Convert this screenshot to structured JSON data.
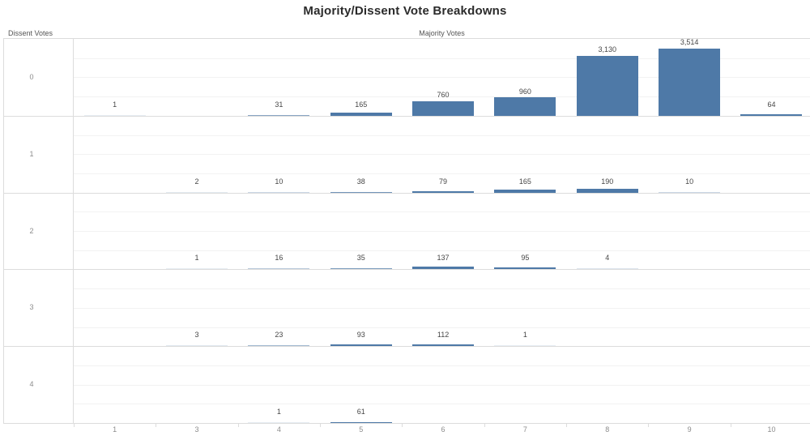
{
  "title": "Majority/Dissent Vote Breakdowns",
  "chart_data": {
    "type": "bar",
    "layout": "trellis-rows",
    "title": "Majority/Dissent Vote Breakdowns",
    "col_axis_label": "Majority Votes",
    "row_axis_label": "Dissent Votes",
    "categories": [
      "1",
      "3",
      "4",
      "5",
      "6",
      "7",
      "8",
      "9",
      "10"
    ],
    "row_categories": [
      "0",
      "1",
      "2",
      "3",
      "4"
    ],
    "ylim_per_pane": [
      0,
      4000
    ],
    "grid": true,
    "gridline_step": 1000,
    "legend": "none",
    "bar_color": "#4e79a7",
    "series": [
      {
        "name": "0",
        "values": [
          1,
          null,
          31,
          165,
          760,
          960,
          3130,
          3514,
          64
        ],
        "labels": [
          "1",
          null,
          "31",
          "165",
          "760",
          "960",
          "3,130",
          "3,514",
          "64"
        ]
      },
      {
        "name": "1",
        "values": [
          null,
          2,
          10,
          38,
          79,
          165,
          190,
          10,
          null
        ],
        "labels": [
          null,
          "2",
          "10",
          "38",
          "79",
          "165",
          "190",
          "10",
          null
        ]
      },
      {
        "name": "2",
        "values": [
          null,
          1,
          16,
          35,
          137,
          95,
          4,
          null,
          null
        ],
        "labels": [
          null,
          "1",
          "16",
          "35",
          "137",
          "95",
          "4",
          null,
          null
        ]
      },
      {
        "name": "3",
        "values": [
          null,
          3,
          23,
          93,
          112,
          1,
          null,
          null,
          null
        ],
        "labels": [
          null,
          "3",
          "23",
          "93",
          "112",
          "1",
          null,
          null,
          null
        ]
      },
      {
        "name": "4",
        "values": [
          null,
          null,
          1,
          61,
          null,
          null,
          null,
          null,
          null
        ],
        "labels": [
          null,
          null,
          "1",
          "61",
          null,
          null,
          null,
          null,
          null
        ]
      }
    ]
  }
}
